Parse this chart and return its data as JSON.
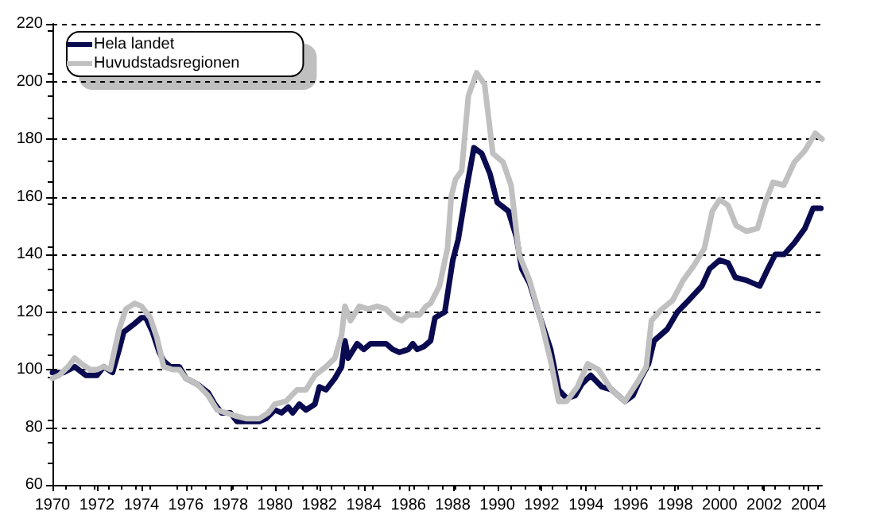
{
  "chart_data": {
    "type": "line",
    "xlim": [
      1970,
      2004.6
    ],
    "xticks": [
      1970,
      1972,
      1974,
      1976,
      1978,
      1980,
      1982,
      1984,
      1986,
      1988,
      1990,
      1992,
      1994,
      1996,
      1998,
      2000,
      2002,
      2004
    ],
    "ylim": [
      60,
      220
    ],
    "yticks": [
      60,
      80,
      100,
      120,
      140,
      160,
      180,
      200,
      220
    ],
    "grid": "y",
    "legend": "top left",
    "marker": "none",
    "line_style": "solid",
    "series": [
      {
        "name": "Hela landet",
        "color": "#0a0a50",
        "x": [
          1970,
          1970.5,
          1971,
          1971.5,
          1972,
          1972.3,
          1972.7,
          1973,
          1973.2,
          1973.7,
          1974,
          1974.2,
          1974.5,
          1974.8,
          1975,
          1975.3,
          1975.7,
          1976,
          1976.5,
          1977,
          1977.3,
          1977.6,
          1978,
          1978.3,
          1978.8,
          1979.3,
          1979.6,
          1980,
          1980.3,
          1980.6,
          1980.8,
          1981.1,
          1981.4,
          1981.8,
          1982,
          1982.3,
          1982.7,
          1983,
          1983.15,
          1983.3,
          1983.7,
          1984,
          1984.3,
          1984.7,
          1985,
          1985.3,
          1985.6,
          1986,
          1986.2,
          1986.4,
          1986.7,
          1987,
          1987.2,
          1987.64,
          1988,
          1988.24,
          1988.6,
          1988.95,
          1989.3,
          1989.67,
          1990,
          1990.5,
          1990.86,
          1991.1,
          1991.45,
          1991.93,
          1992.4,
          1992.76,
          1993.12,
          1993.5,
          1993.8,
          1994.2,
          1994.7,
          1995.14,
          1995.74,
          1996.1,
          1996.45,
          1996.8,
          1997.05,
          1997.64,
          1998.1,
          1998.6,
          1999.2,
          1999.55,
          2000,
          2000.38,
          2000.7,
          2001.2,
          2001.8,
          2002.17,
          2002.5,
          2002.9,
          2003.36,
          2003.83,
          2004.2,
          2004.55
        ],
        "values": [
          99,
          99,
          101,
          98,
          98,
          101,
          99,
          107,
          113,
          116,
          118,
          118,
          113,
          106,
          103,
          101,
          101,
          97,
          95,
          92,
          88,
          85,
          85,
          82,
          82,
          82,
          83,
          86,
          85,
          87,
          85,
          88,
          86,
          88,
          94,
          93,
          97,
          101,
          110,
          104,
          109,
          107,
          109,
          109,
          109,
          107,
          106,
          107,
          109,
          107,
          108,
          110,
          118,
          120,
          138,
          145,
          162,
          177,
          175,
          168,
          158,
          155,
          146,
          135,
          130,
          118,
          107,
          93,
          90,
          91,
          95,
          98,
          94,
          93,
          89,
          91,
          97,
          102,
          110,
          114,
          120,
          124,
          129,
          135,
          138,
          137,
          132,
          131,
          129,
          135,
          140,
          140,
          144,
          149,
          156,
          156
        ]
      },
      {
        "name": "Huvudstadsregionen",
        "color": "#c0c0c0",
        "x": [
          1970,
          1970.3,
          1970.7,
          1971,
          1971.3,
          1971.7,
          1972,
          1972.3,
          1972.6,
          1973,
          1973.3,
          1973.7,
          1974,
          1974.4,
          1974.7,
          1975,
          1975.4,
          1975.7,
          1976,
          1976.5,
          1977,
          1977.4,
          1977.8,
          1978.2,
          1978.7,
          1979.3,
          1979.7,
          1980,
          1980.5,
          1981,
          1981.4,
          1981.8,
          1982.3,
          1982.7,
          1983,
          1983.15,
          1983.4,
          1983.8,
          1984.2,
          1984.6,
          1985,
          1985.4,
          1985.7,
          1986,
          1986.5,
          1986.8,
          1987,
          1987.4,
          1987.76,
          1987.93,
          1988.12,
          1988.4,
          1988.7,
          1989.07,
          1989.43,
          1989.8,
          1990.26,
          1990.62,
          1990.98,
          1991.45,
          1991.93,
          1992.4,
          1992.76,
          1993.12,
          1993.6,
          1994.07,
          1994.55,
          1995.14,
          1995.74,
          1996.33,
          1996.7,
          1996.93,
          1997.4,
          1997.88,
          1998.36,
          1998.83,
          1999.31,
          1999.67,
          2000,
          2000.38,
          2000.74,
          2001.2,
          2001.7,
          2002.05,
          2002.4,
          2002.88,
          2003.36,
          2003.83,
          2004.3,
          2004.6
        ],
        "values": [
          97,
          98,
          101,
          104,
          102,
          100,
          100,
          101,
          100,
          114,
          121,
          123,
          122,
          118,
          111,
          101,
          100,
          100,
          97,
          95,
          91,
          86,
          85,
          84,
          83,
          83,
          85,
          88,
          89,
          93,
          93,
          98,
          101,
          104,
          112,
          122,
          117,
          122,
          121,
          122,
          121,
          118,
          117,
          119,
          119,
          122,
          123,
          129,
          142,
          160,
          166,
          169,
          195,
          203,
          199,
          175,
          172,
          164,
          140,
          131,
          118,
          103,
          89,
          89,
          94,
          102,
          100,
          93,
          89,
          96,
          101,
          117,
          121,
          124,
          131,
          136,
          142,
          155,
          159,
          157,
          150,
          148,
          149,
          158,
          165,
          164,
          172,
          176,
          182,
          180
        ]
      }
    ]
  }
}
